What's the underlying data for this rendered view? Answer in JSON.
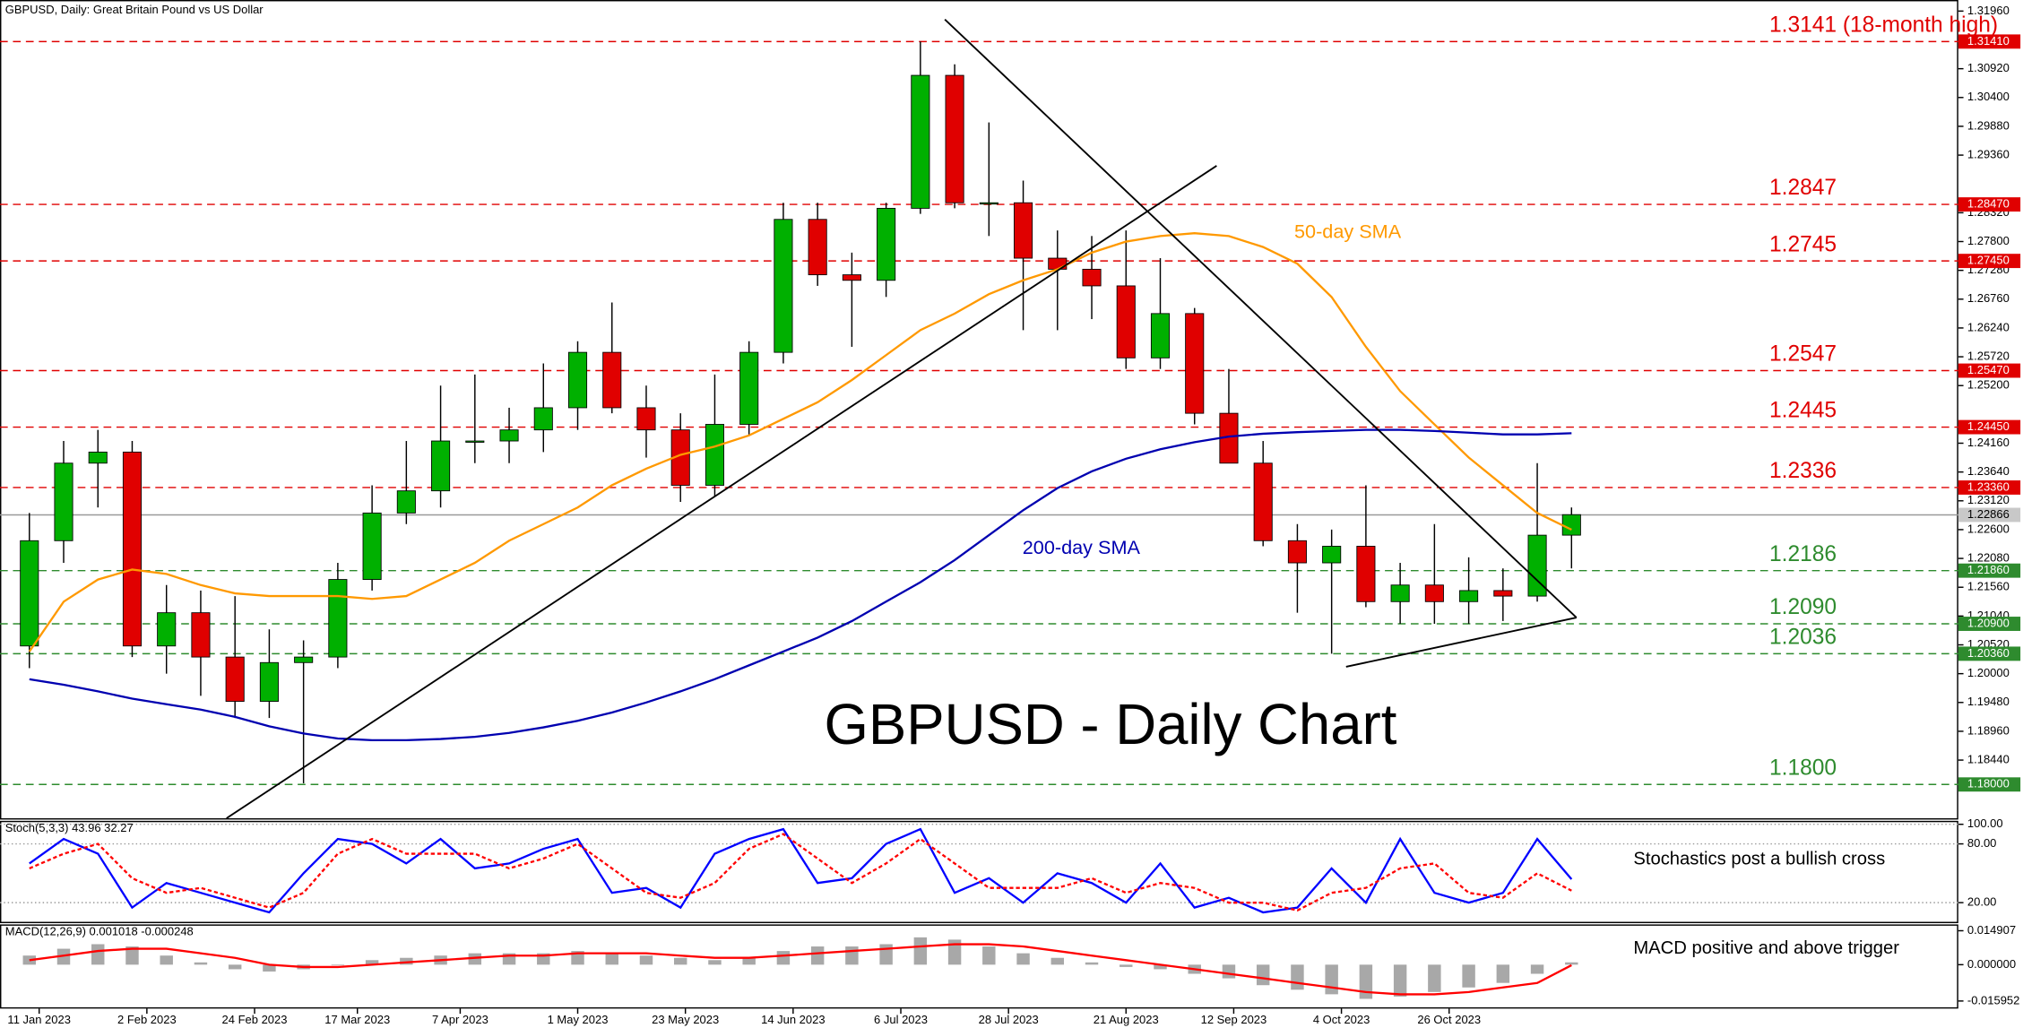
{
  "chart_data": [
    {
      "type": "candlestick",
      "title": "GBPUSD, Daily:  Great Britain Pound vs US Dollar",
      "heading": "GBPUSD - Daily Chart",
      "x": [
        "2023-01-09",
        "2023-01-16",
        "2023-01-23",
        "2023-01-30",
        "2023-02-06",
        "2023-02-13",
        "2023-02-20",
        "2023-02-27",
        "2023-03-06",
        "2023-03-13",
        "2023-03-20",
        "2023-03-27",
        "2023-04-03",
        "2023-04-10",
        "2023-04-17",
        "2023-04-24",
        "2023-05-01",
        "2023-05-08",
        "2023-05-15",
        "2023-05-22",
        "2023-05-29",
        "2023-06-05",
        "2023-06-12",
        "2023-06-19",
        "2023-06-26",
        "2023-07-03",
        "2023-07-10",
        "2023-07-17",
        "2023-07-24",
        "2023-07-31",
        "2023-08-07",
        "2023-08-14",
        "2023-08-21",
        "2023-08-28",
        "2023-09-04",
        "2023-09-11",
        "2023-09-18",
        "2023-09-25",
        "2023-10-02",
        "2023-10-09",
        "2023-10-16",
        "2023-10-23",
        "2023-10-30",
        "2023-11-06",
        "2023-11-13",
        "2023-11-20"
      ],
      "open": [
        1.205,
        1.224,
        1.238,
        1.24,
        1.205,
        1.211,
        1.203,
        1.195,
        1.202,
        1.203,
        1.217,
        1.229,
        1.233,
        1.242,
        1.242,
        1.244,
        1.248,
        1.258,
        1.248,
        1.244,
        1.234,
        1.245,
        1.258,
        1.282,
        1.272,
        1.271,
        1.284,
        1.308,
        1.285,
        1.285,
        1.275,
        1.273,
        1.27,
        1.257,
        1.265,
        1.247,
        1.238,
        1.224,
        1.22,
        1.223,
        1.213,
        1.216,
        1.213,
        1.215,
        1.214,
        1.225
      ],
      "high": [
        1.229,
        1.242,
        1.244,
        1.242,
        1.216,
        1.215,
        1.214,
        1.208,
        1.206,
        1.22,
        1.234,
        1.242,
        1.252,
        1.254,
        1.248,
        1.256,
        1.26,
        1.267,
        1.252,
        1.247,
        1.254,
        1.26,
        1.285,
        1.285,
        1.276,
        1.285,
        1.3141,
        1.31,
        1.2995,
        1.289,
        1.28,
        1.279,
        1.28,
        1.275,
        1.266,
        1.255,
        1.242,
        1.227,
        1.226,
        1.234,
        1.22,
        1.227,
        1.221,
        1.219,
        1.238,
        1.23
      ],
      "low": [
        1.201,
        1.22,
        1.23,
        1.203,
        1.2,
        1.196,
        1.192,
        1.192,
        1.1802,
        1.201,
        1.215,
        1.227,
        1.23,
        1.238,
        1.238,
        1.24,
        1.244,
        1.247,
        1.239,
        1.231,
        1.232,
        1.243,
        1.256,
        1.27,
        1.259,
        1.268,
        1.283,
        1.284,
        1.279,
        1.262,
        1.262,
        1.264,
        1.255,
        1.255,
        1.245,
        1.238,
        1.223,
        1.211,
        1.2036,
        1.212,
        1.209,
        1.209,
        1.209,
        1.2095,
        1.213,
        1.219
      ],
      "close": [
        1.224,
        1.238,
        1.24,
        1.205,
        1.211,
        1.203,
        1.195,
        1.202,
        1.203,
        1.217,
        1.229,
        1.233,
        1.242,
        1.242,
        1.244,
        1.248,
        1.258,
        1.248,
        1.244,
        1.234,
        1.245,
        1.258,
        1.282,
        1.272,
        1.271,
        1.284,
        1.308,
        1.285,
        1.285,
        1.275,
        1.273,
        1.27,
        1.257,
        1.265,
        1.247,
        1.238,
        1.224,
        1.22,
        1.223,
        1.213,
        1.216,
        1.213,
        1.215,
        1.214,
        1.225,
        1.2287
      ],
      "up_color": "#00b000",
      "down_color": "#e00000",
      "series": [
        {
          "name": "50-day SMA",
          "color": "#ff9900",
          "values": [
            1.204,
            1.213,
            1.217,
            1.2188,
            1.218,
            1.216,
            1.2145,
            1.214,
            1.214,
            1.214,
            1.2135,
            1.214,
            1.217,
            1.22,
            1.224,
            1.227,
            1.23,
            1.234,
            1.237,
            1.2395,
            1.241,
            1.243,
            1.246,
            1.249,
            1.253,
            1.2575,
            1.262,
            1.265,
            1.2685,
            1.271,
            1.273,
            1.276,
            1.278,
            1.279,
            1.2795,
            1.279,
            1.277,
            1.274,
            1.268,
            1.259,
            1.251,
            1.245,
            1.239,
            1.234,
            1.229,
            1.226
          ]
        },
        {
          "name": "200-day SMA",
          "color": "#0000b0",
          "values": [
            1.199,
            1.198,
            1.1968,
            1.1955,
            1.1945,
            1.1935,
            1.1922,
            1.1905,
            1.1892,
            1.1883,
            1.188,
            1.188,
            1.1882,
            1.1886,
            1.1893,
            1.1903,
            1.1915,
            1.193,
            1.1948,
            1.1968,
            1.199,
            1.2015,
            1.204,
            1.2065,
            1.2095,
            1.213,
            1.2165,
            1.2205,
            1.225,
            1.2295,
            1.2335,
            1.2365,
            1.2388,
            1.2405,
            1.2418,
            1.2428,
            1.2433,
            1.2436,
            1.2438,
            1.244,
            1.244,
            1.2438,
            1.2435,
            1.2432,
            1.2432,
            1.2434
          ]
        }
      ],
      "levels": [
        {
          "value": 1.3141,
          "label": "1.3141 (18-month high)",
          "axis_label": "1.31410",
          "color": "#e00000"
        },
        {
          "value": 1.2847,
          "label": "1.2847",
          "axis_label": "1.28470",
          "color": "#e00000"
        },
        {
          "value": 1.2745,
          "label": "1.2745",
          "axis_label": "1.27450",
          "color": "#e00000"
        },
        {
          "value": 1.2547,
          "label": "1.2547",
          "axis_label": "1.25470",
          "color": "#e00000"
        },
        {
          "value": 1.2445,
          "label": "1.2445",
          "axis_label": "1.24450",
          "color": "#e00000"
        },
        {
          "value": 1.2336,
          "label": "1.2336",
          "axis_label": "1.23360",
          "color": "#e00000"
        },
        {
          "value": 1.2186,
          "label": "1.2186",
          "axis_label": "1.21860",
          "color": "#2e8b2e"
        },
        {
          "value": 1.209,
          "label": "1.2090",
          "axis_label": "1.20900",
          "color": "#2e8b2e"
        },
        {
          "value": 1.2036,
          "label": "1.2036",
          "axis_label": "1.20360",
          "color": "#2e8b2e"
        },
        {
          "value": 1.18,
          "label": "1.1800",
          "axis_label": "1.18000",
          "color": "#2e8b2e"
        }
      ],
      "last_price": {
        "value": 1.22866,
        "label": "1.22866"
      },
      "ylim": [
        1.1739,
        1.3216
      ],
      "yticks": [
        {
          "value": 1.3196,
          "label": "1.31960"
        },
        {
          "value": 1.3092,
          "label": "1.30920"
        },
        {
          "value": 1.304,
          "label": "1.30400"
        },
        {
          "value": 1.2988,
          "label": "1.29880"
        },
        {
          "value": 1.2936,
          "label": "1.29360"
        },
        {
          "value": 1.2832,
          "label": "1.28320"
        },
        {
          "value": 1.278,
          "label": "1.27800"
        },
        {
          "value": 1.2728,
          "label": "1.27280"
        },
        {
          "value": 1.2676,
          "label": "1.26760"
        },
        {
          "value": 1.2624,
          "label": "1.26240"
        },
        {
          "value": 1.2572,
          "label": "1.25720"
        },
        {
          "value": 1.252,
          "label": "1.25200"
        },
        {
          "value": 1.2416,
          "label": "1.24160"
        },
        {
          "value": 1.2364,
          "label": "1.23640"
        },
        {
          "value": 1.2312,
          "label": "1.23120"
        },
        {
          "value": 1.226,
          "label": "1.22600"
        },
        {
          "value": 1.2208,
          "label": "1.22080"
        },
        {
          "value": 1.2156,
          "label": "1.21560"
        },
        {
          "value": 1.2104,
          "label": "1.21040"
        },
        {
          "value": 1.2052,
          "label": "1.20520"
        },
        {
          "value": 1.2,
          "label": "1.20000"
        },
        {
          "value": 1.1948,
          "label": "1.19480"
        },
        {
          "value": 1.1896,
          "label": "1.18960"
        },
        {
          "value": 1.1844,
          "label": "1.18440"
        }
      ],
      "xlim": [
        "2023-01-03",
        "2024-02-07"
      ],
      "xticks": [
        {
          "value": "2023-01-11",
          "label": "11 Jan 2023"
        },
        {
          "value": "2023-02-02",
          "label": "2 Feb 2023"
        },
        {
          "value": "2023-02-24",
          "label": "24 Feb 2023"
        },
        {
          "value": "2023-03-17",
          "label": "17 Mar 2023"
        },
        {
          "value": "2023-04-07",
          "label": "7 Apr 2023"
        },
        {
          "value": "2023-05-01",
          "label": "1 May 2023"
        },
        {
          "value": "2023-05-23",
          "label": "23 May 2023"
        },
        {
          "value": "2023-06-14",
          "label": "14 Jun 2023"
        },
        {
          "value": "2023-07-06",
          "label": "6 Jul 2023"
        },
        {
          "value": "2023-07-28",
          "label": "28 Jul 2023"
        },
        {
          "value": "2023-08-21",
          "label": "21 Aug 2023"
        },
        {
          "value": "2023-09-12",
          "label": "12 Sep 2023"
        },
        {
          "value": "2023-10-04",
          "label": "4 Oct 2023"
        },
        {
          "value": "2023-10-26",
          "label": "26 Oct 2023"
        }
      ]
    },
    {
      "type": "stochastic",
      "title": "Stoch(5,3,3) 43.96 32.27",
      "annotation": "Stochastics post a bullish cross",
      "series": [
        {
          "color": "#0000ff",
          "values": [
            60,
            85,
            70,
            15,
            40,
            30,
            20,
            10,
            50,
            85,
            80,
            60,
            85,
            55,
            60,
            75,
            85,
            30,
            35,
            15,
            70,
            85,
            95,
            40,
            45,
            80,
            95,
            30,
            45,
            20,
            50,
            40,
            20,
            60,
            15,
            25,
            10,
            15,
            55,
            20,
            85,
            30,
            20,
            30,
            85,
            43.96
          ]
        },
        {
          "color": "#ff0000",
          "dashed": true,
          "values": [
            55,
            70,
            80,
            45,
            30,
            35,
            25,
            15,
            30,
            70,
            85,
            70,
            70,
            70,
            55,
            65,
            80,
            55,
            30,
            25,
            40,
            75,
            90,
            65,
            40,
            60,
            85,
            60,
            35,
            35,
            35,
            45,
            30,
            40,
            35,
            20,
            20,
            12,
            30,
            35,
            55,
            60,
            30,
            25,
            50,
            32.27
          ]
        }
      ],
      "ylim": [
        0.4,
        102.2
      ],
      "yticks": [
        {
          "value": 100,
          "label": "100.00"
        },
        {
          "value": 80,
          "label": "80.00"
        },
        {
          "value": 20,
          "label": "20.00"
        }
      ]
    },
    {
      "type": "macd",
      "title": "MACD(12,26,9) 0.001018 -0.000248",
      "annotation": "MACD positive and above trigger",
      "series": [
        {
          "kind": "bar",
          "color": "#a8a8a8",
          "values": [
            0.004,
            0.007,
            0.009,
            0.008,
            0.004,
            0.001,
            -0.002,
            -0.003,
            -0.002,
            0.0,
            0.002,
            0.003,
            0.004,
            0.005,
            0.005,
            0.005,
            0.006,
            0.005,
            0.004,
            0.003,
            0.002,
            0.003,
            0.006,
            0.008,
            0.008,
            0.009,
            0.012,
            0.011,
            0.008,
            0.005,
            0.003,
            0.001,
            -0.001,
            -0.002,
            -0.004,
            -0.006,
            -0.009,
            -0.011,
            -0.013,
            -0.015,
            -0.014,
            -0.012,
            -0.01,
            -0.008,
            -0.004,
            0.001018
          ]
        },
        {
          "kind": "line",
          "color": "#ff0000",
          "values": [
            0.002,
            0.004,
            0.006,
            0.007,
            0.007,
            0.005,
            0.003,
            0.0,
            -0.001,
            -0.001,
            0.0,
            0.001,
            0.002,
            0.003,
            0.004,
            0.004,
            0.005,
            0.005,
            0.005,
            0.004,
            0.003,
            0.003,
            0.004,
            0.005,
            0.006,
            0.007,
            0.008,
            0.009,
            0.009,
            0.008,
            0.006,
            0.004,
            0.002,
            0.0,
            -0.002,
            -0.004,
            -0.006,
            -0.008,
            -0.01,
            -0.012,
            -0.013,
            -0.013,
            -0.012,
            -0.01,
            -0.008,
            -0.000248
          ]
        }
      ],
      "ylim": [
        -0.01871,
        0.01711
      ],
      "yticks": [
        0.014907,
        {
          "value": 0,
          "label": "0.000000"
        },
        -0.015952
      ]
    }
  ]
}
